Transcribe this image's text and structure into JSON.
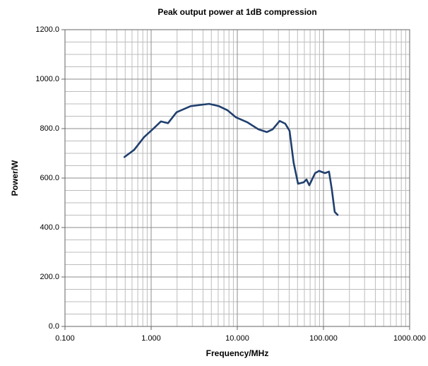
{
  "chart_data": {
    "type": "line",
    "title": "Peak output power at 1dB compression",
    "x_label": "Frequency/MHz",
    "y_label": "Power/W",
    "x_scale": "log",
    "grid": true,
    "minor_grid": true,
    "xlim": [
      0.1,
      1000
    ],
    "ylim": [
      0,
      1200
    ],
    "xticks": [
      {
        "value": 0.1,
        "label": "0.100"
      },
      {
        "value": 1,
        "label": "1.000"
      },
      {
        "value": 10,
        "label": "10.000"
      },
      {
        "value": 100,
        "label": "100.000"
      },
      {
        "value": 1000,
        "label": "1000.000"
      }
    ],
    "yticks": [
      {
        "value": 0,
        "label": "0.0"
      },
      {
        "value": 200,
        "label": "200.0"
      },
      {
        "value": 400,
        "label": "400.0"
      },
      {
        "value": 600,
        "label": "600.0"
      },
      {
        "value": 800,
        "label": "800.0"
      },
      {
        "value": 1000,
        "label": "1000.0"
      },
      {
        "value": 1200,
        "label": "1200.0"
      }
    ],
    "x_minor_ticks": [
      0.2,
      0.3,
      0.4,
      0.5,
      0.6,
      0.7,
      0.8,
      0.9,
      2,
      3,
      4,
      5,
      6,
      7,
      8,
      9,
      20,
      30,
      40,
      50,
      60,
      70,
      80,
      90,
      200,
      300,
      400,
      500,
      600,
      700,
      800,
      900
    ],
    "y_minor_ticks": [
      50,
      100,
      150,
      250,
      300,
      350,
      450,
      500,
      550,
      650,
      700,
      750,
      850,
      900,
      950,
      1050,
      1100,
      1150
    ],
    "series": [
      {
        "color": "#203f6e",
        "x": [
          0.49,
          0.635,
          0.83,
          1.04,
          1.3,
          1.57,
          1.97,
          2.88,
          4.7,
          6.1,
          7.7,
          9.6,
          13,
          17.6,
          22,
          25.7,
          31,
          36,
          40.4,
          45,
          50.7,
          59,
          63.5,
          68.5,
          80,
          89,
          104,
          116,
          125,
          135,
          146
        ],
        "values": [
          685,
          714,
          766,
          797,
          829,
          822,
          866,
          891,
          900,
          891,
          874,
          846,
          826,
          797,
          786,
          797,
          831,
          820,
          791,
          663,
          577,
          583,
          594,
          571,
          620,
          629,
          620,
          626,
          554,
          463,
          451
        ]
      }
    ]
  }
}
